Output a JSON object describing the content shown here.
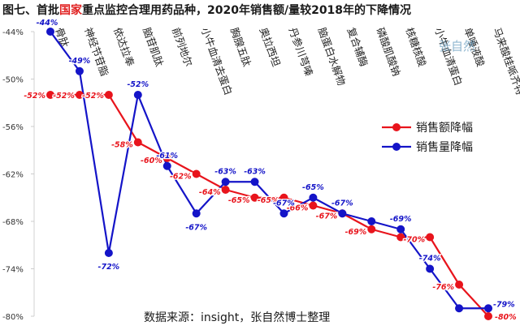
{
  "header": {
    "title_before": "图七、首批",
    "title_highlight": "国家",
    "title_after": "重点监控合理用药品种，2020年销售额/量较2018年的下降情况",
    "highlight_color": "#e02020"
  },
  "watermark": "张自然",
  "source": "数据来源：insight，张自然博士整理",
  "chart_data": {
    "type": "line",
    "title": "图七、首批国家重点监控合理用药品种，2020年销售额/量较2018年的下降情况",
    "xlabel": "",
    "ylabel": "",
    "categories": [
      "骨肽",
      "神经节苷脂",
      "依达拉奉",
      "脑苷肌肽",
      "前列地尔",
      "小牛血清去蛋白",
      "胸腺五肽",
      "奥拉西坦",
      "丹参川芎嗪",
      "脑蛋白水解物",
      "复合辅酶",
      "磷酸肌酸钠",
      "核糖核酸",
      "小牛血清蛋白",
      "单唾液酸",
      "马来酸桂哌齐特"
    ],
    "ylim": [
      -80,
      -44
    ],
    "y_ticks": [
      -44,
      -50,
      -56,
      -62,
      -68,
      -74,
      -80
    ],
    "y_tick_labels": [
      "-44%",
      "-50%",
      "-56%",
      "-62%",
      "-68%",
      "-74%",
      "-80%"
    ],
    "grid": false,
    "legend_position": "right",
    "series": [
      {
        "name": "销售额降幅",
        "color": "#e8141c",
        "values": [
          -52,
          -52,
          -52,
          -58,
          -60,
          -62,
          -64,
          -65,
          -65,
          -66,
          -67,
          -69,
          -70,
          -70,
          -76,
          -80
        ],
        "labels": [
          "-52%",
          "-52%",
          "-52%",
          "-58%",
          "-60%",
          "-62%",
          "-64%",
          "-65%",
          "-65%",
          "-66%",
          "-67%",
          "-69%",
          "",
          "-70%",
          "-76%",
          "-80%"
        ]
      },
      {
        "name": "销售量降幅",
        "color": "#1414c8",
        "values": [
          -44,
          -49,
          -72,
          -52,
          -61,
          -67,
          -63,
          -63,
          -67,
          -65,
          -67,
          -68,
          -69,
          -74,
          -79,
          -79
        ],
        "labels": [
          "-44%",
          "-49%",
          "-72%",
          "-52%",
          "-61%",
          "-67%",
          "-63%",
          "-63%",
          "-67%",
          "-65%",
          "-67%",
          "",
          "-69%",
          "-74%",
          "",
          "-79%"
        ]
      }
    ]
  }
}
